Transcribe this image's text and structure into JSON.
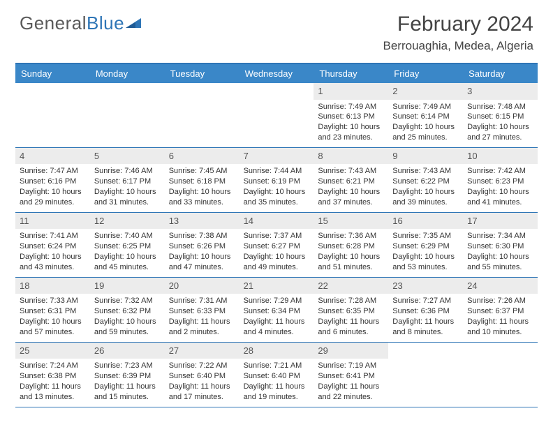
{
  "logo": {
    "text_gray": "General",
    "text_blue": "Blue"
  },
  "title": "February 2024",
  "location": "Berrouaghia, Medea, Algeria",
  "colors": {
    "header_bg": "#3a87c8",
    "header_border": "#2e75b6",
    "daynum_bg": "#ececec",
    "text": "#333333",
    "logo_gray": "#5a5a5a",
    "logo_blue": "#2e75b6"
  },
  "day_names": [
    "Sunday",
    "Monday",
    "Tuesday",
    "Wednesday",
    "Thursday",
    "Friday",
    "Saturday"
  ],
  "weeks": [
    [
      null,
      null,
      null,
      null,
      {
        "n": "1",
        "sr": "Sunrise: 7:49 AM",
        "ss": "Sunset: 6:13 PM",
        "dl": "Daylight: 10 hours and 23 minutes."
      },
      {
        "n": "2",
        "sr": "Sunrise: 7:49 AM",
        "ss": "Sunset: 6:14 PM",
        "dl": "Daylight: 10 hours and 25 minutes."
      },
      {
        "n": "3",
        "sr": "Sunrise: 7:48 AM",
        "ss": "Sunset: 6:15 PM",
        "dl": "Daylight: 10 hours and 27 minutes."
      }
    ],
    [
      {
        "n": "4",
        "sr": "Sunrise: 7:47 AM",
        "ss": "Sunset: 6:16 PM",
        "dl": "Daylight: 10 hours and 29 minutes."
      },
      {
        "n": "5",
        "sr": "Sunrise: 7:46 AM",
        "ss": "Sunset: 6:17 PM",
        "dl": "Daylight: 10 hours and 31 minutes."
      },
      {
        "n": "6",
        "sr": "Sunrise: 7:45 AM",
        "ss": "Sunset: 6:18 PM",
        "dl": "Daylight: 10 hours and 33 minutes."
      },
      {
        "n": "7",
        "sr": "Sunrise: 7:44 AM",
        "ss": "Sunset: 6:19 PM",
        "dl": "Daylight: 10 hours and 35 minutes."
      },
      {
        "n": "8",
        "sr": "Sunrise: 7:43 AM",
        "ss": "Sunset: 6:21 PM",
        "dl": "Daylight: 10 hours and 37 minutes."
      },
      {
        "n": "9",
        "sr": "Sunrise: 7:43 AM",
        "ss": "Sunset: 6:22 PM",
        "dl": "Daylight: 10 hours and 39 minutes."
      },
      {
        "n": "10",
        "sr": "Sunrise: 7:42 AM",
        "ss": "Sunset: 6:23 PM",
        "dl": "Daylight: 10 hours and 41 minutes."
      }
    ],
    [
      {
        "n": "11",
        "sr": "Sunrise: 7:41 AM",
        "ss": "Sunset: 6:24 PM",
        "dl": "Daylight: 10 hours and 43 minutes."
      },
      {
        "n": "12",
        "sr": "Sunrise: 7:40 AM",
        "ss": "Sunset: 6:25 PM",
        "dl": "Daylight: 10 hours and 45 minutes."
      },
      {
        "n": "13",
        "sr": "Sunrise: 7:38 AM",
        "ss": "Sunset: 6:26 PM",
        "dl": "Daylight: 10 hours and 47 minutes."
      },
      {
        "n": "14",
        "sr": "Sunrise: 7:37 AM",
        "ss": "Sunset: 6:27 PM",
        "dl": "Daylight: 10 hours and 49 minutes."
      },
      {
        "n": "15",
        "sr": "Sunrise: 7:36 AM",
        "ss": "Sunset: 6:28 PM",
        "dl": "Daylight: 10 hours and 51 minutes."
      },
      {
        "n": "16",
        "sr": "Sunrise: 7:35 AM",
        "ss": "Sunset: 6:29 PM",
        "dl": "Daylight: 10 hours and 53 minutes."
      },
      {
        "n": "17",
        "sr": "Sunrise: 7:34 AM",
        "ss": "Sunset: 6:30 PM",
        "dl": "Daylight: 10 hours and 55 minutes."
      }
    ],
    [
      {
        "n": "18",
        "sr": "Sunrise: 7:33 AM",
        "ss": "Sunset: 6:31 PM",
        "dl": "Daylight: 10 hours and 57 minutes."
      },
      {
        "n": "19",
        "sr": "Sunrise: 7:32 AM",
        "ss": "Sunset: 6:32 PM",
        "dl": "Daylight: 10 hours and 59 minutes."
      },
      {
        "n": "20",
        "sr": "Sunrise: 7:31 AM",
        "ss": "Sunset: 6:33 PM",
        "dl": "Daylight: 11 hours and 2 minutes."
      },
      {
        "n": "21",
        "sr": "Sunrise: 7:29 AM",
        "ss": "Sunset: 6:34 PM",
        "dl": "Daylight: 11 hours and 4 minutes."
      },
      {
        "n": "22",
        "sr": "Sunrise: 7:28 AM",
        "ss": "Sunset: 6:35 PM",
        "dl": "Daylight: 11 hours and 6 minutes."
      },
      {
        "n": "23",
        "sr": "Sunrise: 7:27 AM",
        "ss": "Sunset: 6:36 PM",
        "dl": "Daylight: 11 hours and 8 minutes."
      },
      {
        "n": "24",
        "sr": "Sunrise: 7:26 AM",
        "ss": "Sunset: 6:37 PM",
        "dl": "Daylight: 11 hours and 10 minutes."
      }
    ],
    [
      {
        "n": "25",
        "sr": "Sunrise: 7:24 AM",
        "ss": "Sunset: 6:38 PM",
        "dl": "Daylight: 11 hours and 13 minutes."
      },
      {
        "n": "26",
        "sr": "Sunrise: 7:23 AM",
        "ss": "Sunset: 6:39 PM",
        "dl": "Daylight: 11 hours and 15 minutes."
      },
      {
        "n": "27",
        "sr": "Sunrise: 7:22 AM",
        "ss": "Sunset: 6:40 PM",
        "dl": "Daylight: 11 hours and 17 minutes."
      },
      {
        "n": "28",
        "sr": "Sunrise: 7:21 AM",
        "ss": "Sunset: 6:40 PM",
        "dl": "Daylight: 11 hours and 19 minutes."
      },
      {
        "n": "29",
        "sr": "Sunrise: 7:19 AM",
        "ss": "Sunset: 6:41 PM",
        "dl": "Daylight: 11 hours and 22 minutes."
      },
      null,
      null
    ]
  ]
}
